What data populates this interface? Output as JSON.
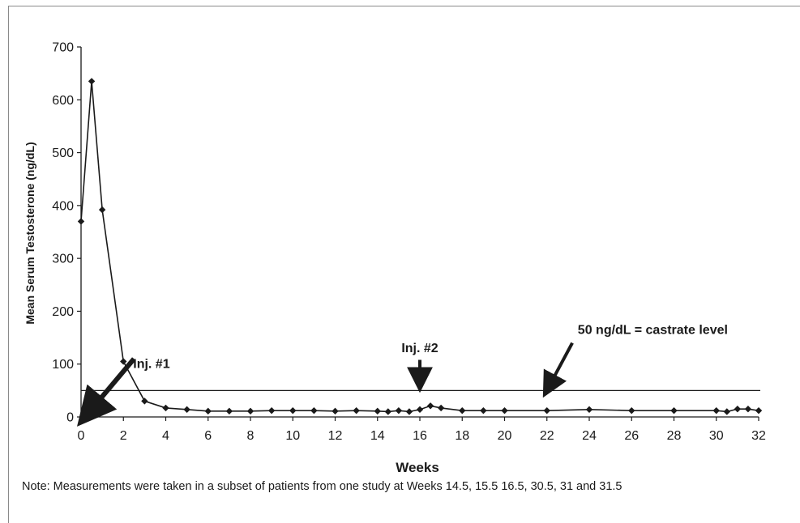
{
  "chart_data": {
    "type": "line",
    "xlabel": "Weeks",
    "ylabel": "Mean Serum Testosterone (ng/dL)",
    "xlim": [
      0,
      32
    ],
    "ylim": [
      0,
      700
    ],
    "x_ticks": [
      0,
      2,
      4,
      6,
      8,
      10,
      12,
      14,
      16,
      18,
      20,
      22,
      24,
      26,
      28,
      30,
      32
    ],
    "y_ticks": [
      0,
      100,
      200,
      300,
      400,
      500,
      600,
      700
    ],
    "grid": false,
    "series": [
      {
        "color": "#1a1a1a",
        "marker": "diamond",
        "x": [
          0,
          0.5,
          1,
          2,
          3,
          4,
          5,
          6,
          7,
          8,
          9,
          10,
          11,
          12,
          13,
          14,
          14.5,
          15,
          15.5,
          16,
          16.5,
          17,
          18,
          19,
          20,
          22,
          24,
          26,
          28,
          30,
          30.5,
          31,
          31.5,
          32
        ],
        "y": [
          370,
          635,
          392,
          105,
          30,
          17,
          14,
          11,
          11,
          11,
          12,
          12,
          12,
          11,
          12,
          11,
          10,
          12,
          10,
          14,
          21,
          17,
          12,
          12,
          12,
          12,
          14,
          12,
          12,
          12,
          10,
          15,
          15,
          12
        ]
      }
    ],
    "reference_line": {
      "y": 50
    },
    "annotations": [
      {
        "text": "Inj. #1",
        "x": 2,
        "y": 100,
        "arrow_from": [
          2.5,
          110
        ],
        "arrow_to": [
          0.4,
          10
        ]
      },
      {
        "text": "Inj. #2",
        "x": 16,
        "y": 130,
        "arrow_from": [
          16,
          108
        ],
        "arrow_to": [
          16,
          70
        ]
      },
      {
        "text": "50 ng/dL = castrate level",
        "x": 27,
        "y": 165,
        "arrow_from": [
          23.2,
          140
        ],
        "arrow_to": [
          22.1,
          58
        ]
      }
    ]
  },
  "note": "Note: Measurements were taken in a subset of patients from one study at Weeks 14.5, 15.5 16.5, 30.5, 31 and 31.5"
}
